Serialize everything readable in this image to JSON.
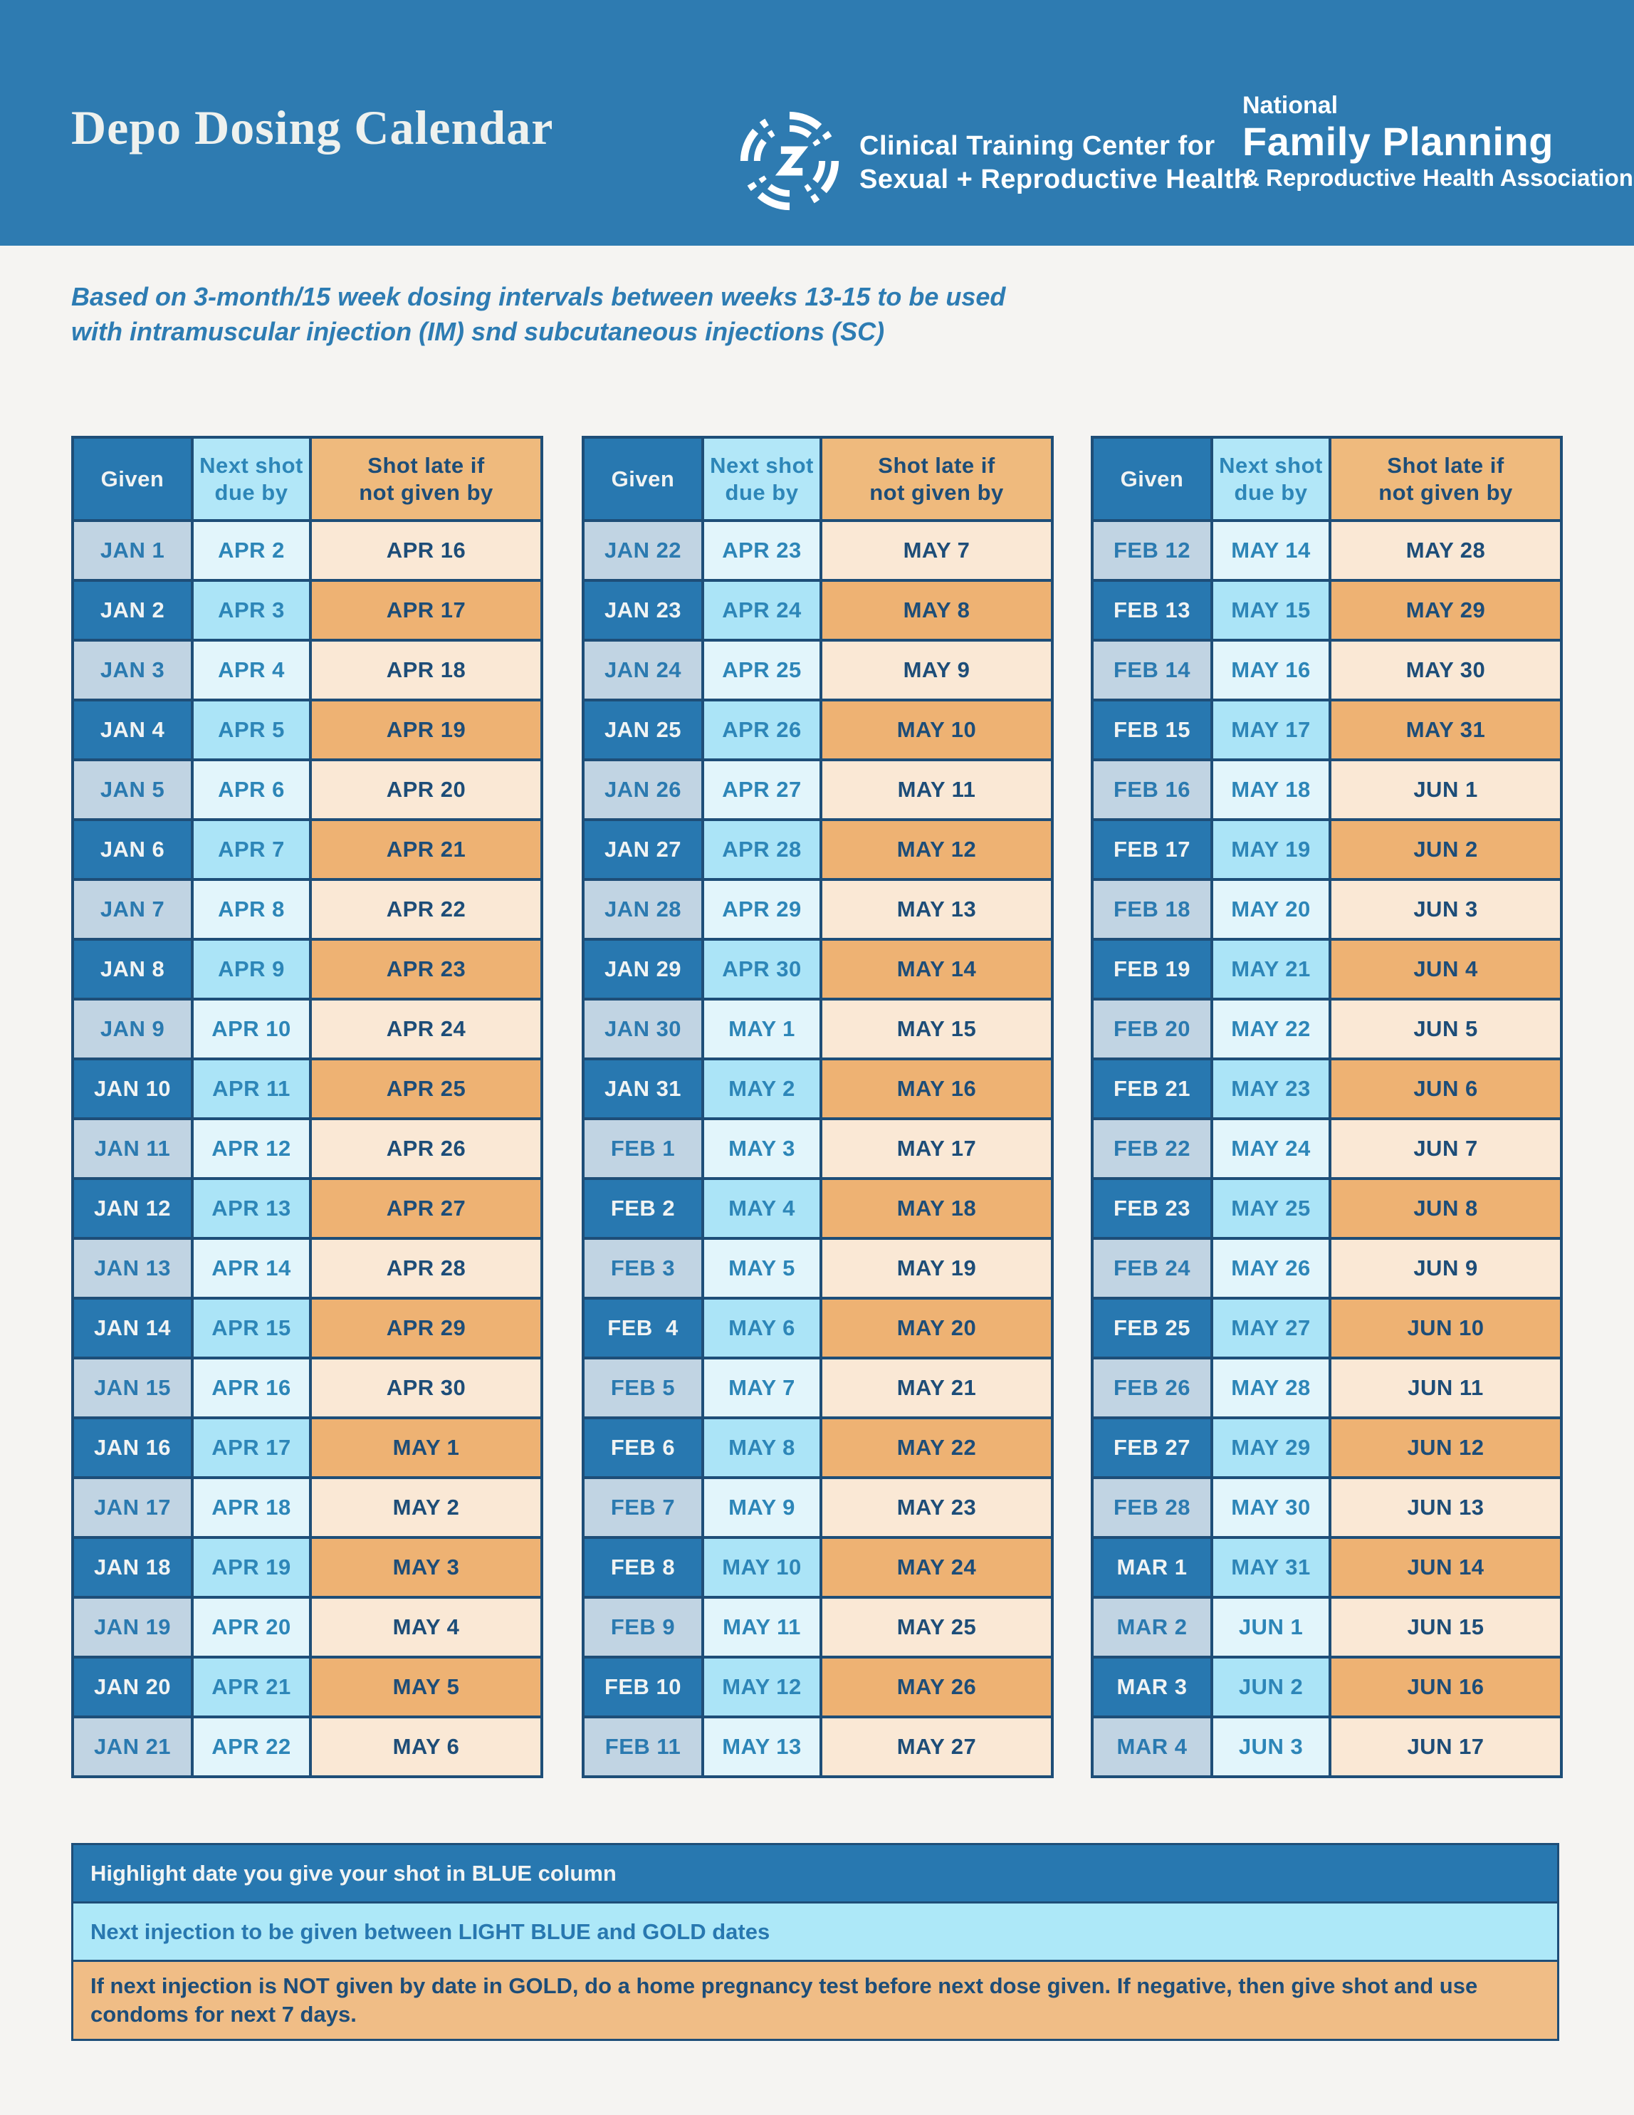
{
  "header": {
    "title": "Depo Dosing Calendar",
    "ctc_logo": {
      "icon": "swirl-circle-icon",
      "line1": "Clinical Training Center for",
      "line2": "Sexual + Reproductive Health"
    },
    "nfprha_logo": {
      "line1": "National",
      "line2": "Family Planning",
      "line3": "& Reproductive Health Association"
    }
  },
  "subtitle": {
    "line1": "Based on 3-month/15 week dosing intervals between weeks 13-15 to be used",
    "line2": "with intramuscular injection (IM) snd subcutaneous injections (SC)"
  },
  "columns": [
    "Given",
    "Next shot\ndue by",
    "Shot late if\nnot given by"
  ],
  "tables": [
    {
      "rows": [
        [
          "JAN 1",
          "APR 2",
          "APR 16"
        ],
        [
          "JAN 2",
          "APR 3",
          "APR 17"
        ],
        [
          "JAN 3",
          "APR 4",
          "APR 18"
        ],
        [
          "JAN 4",
          "APR 5",
          "APR 19"
        ],
        [
          "JAN 5",
          "APR 6",
          "APR 20"
        ],
        [
          "JAN 6",
          "APR 7",
          "APR 21"
        ],
        [
          "JAN 7",
          "APR 8",
          "APR 22"
        ],
        [
          "JAN 8",
          "APR 9",
          "APR 23"
        ],
        [
          "JAN 9",
          "APR 10",
          "APR 24"
        ],
        [
          "JAN 10",
          "APR 11",
          "APR 25"
        ],
        [
          "JAN 11",
          "APR 12",
          "APR 26"
        ],
        [
          "JAN 12",
          "APR 13",
          "APR 27"
        ],
        [
          "JAN 13",
          "APR 14",
          "APR 28"
        ],
        [
          "JAN 14",
          "APR 15",
          "APR 29"
        ],
        [
          "JAN 15",
          "APR 16",
          "APR 30"
        ],
        [
          "JAN 16",
          "APR 17",
          "MAY 1"
        ],
        [
          "JAN 17",
          "APR 18",
          "MAY 2"
        ],
        [
          "JAN 18",
          "APR 19",
          "MAY 3"
        ],
        [
          "JAN 19",
          "APR 20",
          "MAY 4"
        ],
        [
          "JAN 20",
          "APR 21",
          "MAY 5"
        ],
        [
          "JAN 21",
          "APR 22",
          "MAY 6"
        ]
      ]
    },
    {
      "rows": [
        [
          "JAN 22",
          "APR 23",
          "MAY 7"
        ],
        [
          "JAN 23",
          "APR 24",
          "MAY 8"
        ],
        [
          "JAN 24",
          "APR 25",
          "MAY 9"
        ],
        [
          "JAN 25",
          "APR 26",
          "MAY 10"
        ],
        [
          "JAN 26",
          "APR 27",
          "MAY 11"
        ],
        [
          "JAN 27",
          "APR 28",
          "MAY 12"
        ],
        [
          "JAN 28",
          "APR 29",
          "MAY 13"
        ],
        [
          "JAN 29",
          "APR 30",
          "MAY 14"
        ],
        [
          "JAN 30",
          "MAY 1",
          "MAY 15"
        ],
        [
          "JAN 31",
          "MAY 2",
          "MAY 16"
        ],
        [
          "FEB 1",
          "MAY 3",
          "MAY 17"
        ],
        [
          "FEB 2",
          "MAY 4",
          "MAY 18"
        ],
        [
          "FEB 3",
          "MAY 5",
          "MAY 19"
        ],
        [
          "FEB  4",
          "MAY 6",
          "MAY 20"
        ],
        [
          "FEB 5",
          "MAY 7",
          "MAY 21"
        ],
        [
          "FEB 6",
          "MAY 8",
          "MAY 22"
        ],
        [
          "FEB 7",
          "MAY 9",
          "MAY 23"
        ],
        [
          "FEB 8",
          "MAY 10",
          "MAY 24"
        ],
        [
          "FEB 9",
          "MAY 11",
          "MAY 25"
        ],
        [
          "FEB 10",
          "MAY 12",
          "MAY 26"
        ],
        [
          "FEB 11",
          "MAY 13",
          "MAY 27"
        ]
      ]
    },
    {
      "rows": [
        [
          "FEB 12",
          "MAY 14",
          "MAY 28"
        ],
        [
          "FEB 13",
          "MAY 15",
          "MAY 29"
        ],
        [
          "FEB 14",
          "MAY 16",
          "MAY 30"
        ],
        [
          "FEB 15",
          "MAY 17",
          "MAY 31"
        ],
        [
          "FEB 16",
          "MAY 18",
          "JUN 1"
        ],
        [
          "FEB 17",
          "MAY 19",
          "JUN 2"
        ],
        [
          "FEB 18",
          "MAY 20",
          "JUN 3"
        ],
        [
          "FEB 19",
          "MAY 21",
          "JUN 4"
        ],
        [
          "FEB 20",
          "MAY 22",
          "JUN 5"
        ],
        [
          "FEB 21",
          "MAY 23",
          "JUN 6"
        ],
        [
          "FEB 22",
          "MAY 24",
          "JUN 7"
        ],
        [
          "FEB 23",
          "MAY 25",
          "JUN 8"
        ],
        [
          "FEB 24",
          "MAY 26",
          "JUN 9"
        ],
        [
          "FEB 25",
          "MAY 27",
          "JUN 10"
        ],
        [
          "FEB 26",
          "MAY 28",
          "JUN 11"
        ],
        [
          "FEB 27",
          "MAY 29",
          "JUN 12"
        ],
        [
          "FEB 28",
          "MAY 30",
          "JUN 13"
        ],
        [
          "MAR 1",
          "MAY 31",
          "JUN 14"
        ],
        [
          "MAR 2",
          "JUN 1",
          "JUN 15"
        ],
        [
          "MAR 3",
          "JUN 2",
          "JUN 16"
        ],
        [
          "MAR 4",
          "JUN 3",
          "JUN 17"
        ]
      ]
    }
  ],
  "footer": [
    {
      "style": "blue",
      "text": "Highlight date you give your shot in BLUE column"
    },
    {
      "style": "lightblue",
      "text": "Next injection to be given between LIGHT BLUE and GOLD dates"
    },
    {
      "style": "gold",
      "text": "If next injection is NOT given by date in GOLD, do a home pregnancy test before next dose given. If negative, then give shot and use condoms for next 7 days."
    }
  ],
  "colors": {
    "banner_blue": "#2e7bb1",
    "dark_blue_cell": "#2878b0",
    "light_blue_gray_cell": "#c1d4e3",
    "cyan_header": "#b2e7f8",
    "cyan_cell": "#abe4f7",
    "pale_cyan_cell": "#e2f5fb",
    "gold_header": "#efba7d",
    "gold_cell": "#eeb273",
    "cream_cell": "#fae8d5",
    "border_navy": "#1e4e78",
    "text_navy": "#1d4d78",
    "text_blue": "#2d86b8",
    "page_bg": "#f5f4f2"
  }
}
